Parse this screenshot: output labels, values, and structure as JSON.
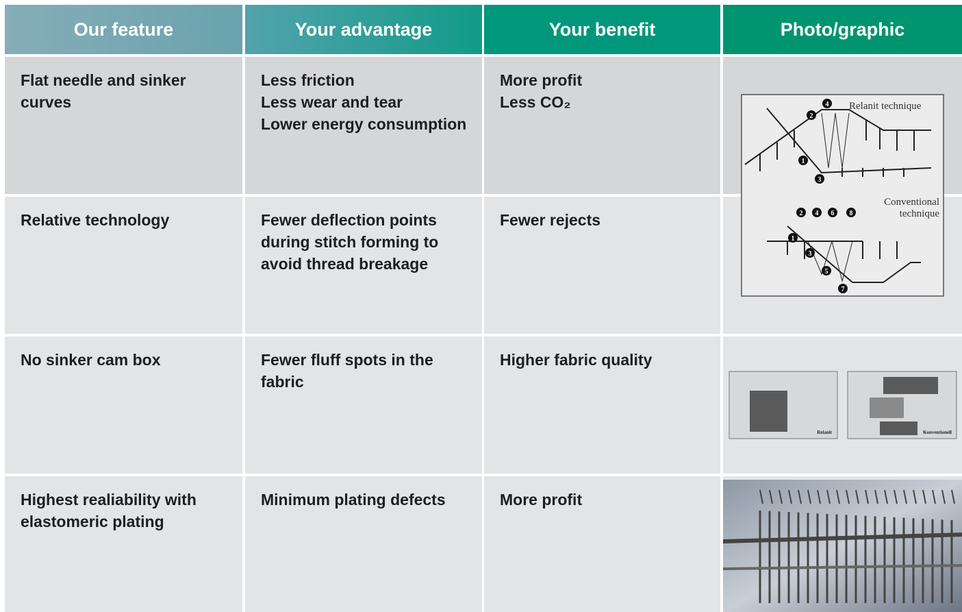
{
  "header": {
    "columns": [
      "Our feature",
      "Your advantage",
      "Your benefit",
      "Photo/graphic"
    ]
  },
  "table": {
    "rows": [
      [
        [
          "Flat needle and sinker",
          "curves"
        ],
        [
          "Less friction",
          "Less wear and tear",
          "Lower energy consumption"
        ],
        [
          "More profit",
          "Less CO₂"
        ]
      ],
      [
        [
          "Relative technology"
        ],
        [
          "Fewer deflection points",
          "during stitch forming to",
          "avoid thread breakage"
        ],
        [
          "Fewer rejects"
        ]
      ],
      [
        [
          "No sinker cam box"
        ],
        [
          "Fewer fluff spots in the",
          "fabric"
        ],
        [
          "Higher fabric quality"
        ]
      ],
      [
        [
          "Highest realiability with",
          "elastomeric plating"
        ],
        [
          "Minimum plating defects"
        ],
        [
          "More profit"
        ]
      ]
    ]
  },
  "graphics": {
    "stitch_diagram": {
      "top_label": "Relanit technique",
      "top_markers": [
        "1",
        "2",
        "3",
        "4"
      ],
      "bottom_label": [
        "Conventional",
        "technique"
      ],
      "bottom_markers": [
        "1",
        "2",
        "3",
        "4",
        "5",
        "6",
        "7",
        "8"
      ]
    },
    "cam_diagrams": [
      "Relanit",
      "Konventionell"
    ]
  }
}
